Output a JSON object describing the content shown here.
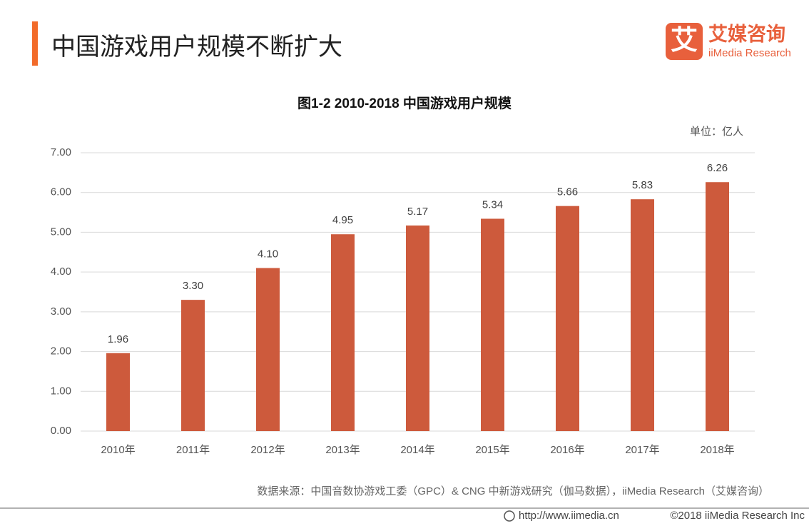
{
  "header": {
    "title": "中国游戏用户规模不断扩大",
    "logo_mark": "艾",
    "logo_name": "艾媒咨询",
    "logo_sub": "iiMedia Research"
  },
  "chart_data": {
    "type": "bar",
    "title": "图1-2 2010-2018 中国游戏用户规模",
    "unit": "单位：亿人",
    "categories": [
      "2010年",
      "2011年",
      "2012年",
      "2013年",
      "2014年",
      "2015年",
      "2016年",
      "2017年",
      "2018年"
    ],
    "values": [
      1.96,
      3.3,
      4.1,
      4.95,
      5.17,
      5.34,
      5.66,
      5.83,
      6.26
    ],
    "value_labels": [
      "1.96",
      "3.30",
      "4.10",
      "4.95",
      "5.17",
      "5.34",
      "5.66",
      "5.83",
      "6.26"
    ],
    "color": "#cd5a3c",
    "ylim": [
      0,
      7
    ],
    "yticks": [
      {
        "value": 0,
        "label": "0.00"
      },
      {
        "value": 1,
        "label": "1.00"
      },
      {
        "value": 2,
        "label": "2.00"
      },
      {
        "value": 3,
        "label": "3.00"
      },
      {
        "value": 4,
        "label": "4.00"
      },
      {
        "value": 5,
        "label": "5.00"
      },
      {
        "value": 6,
        "label": "6.00"
      },
      {
        "value": 7,
        "label": "7.00"
      }
    ],
    "grid": true,
    "source": "数据来源：中国音数协游戏工委（GPC）& CNG 中新游戏研究（伽马数据），iiMedia Research（艾媒咨询）"
  },
  "footer": {
    "url": "http://www.iimedia.cn",
    "copyright": "©2018  iiMedia Research  Inc"
  }
}
